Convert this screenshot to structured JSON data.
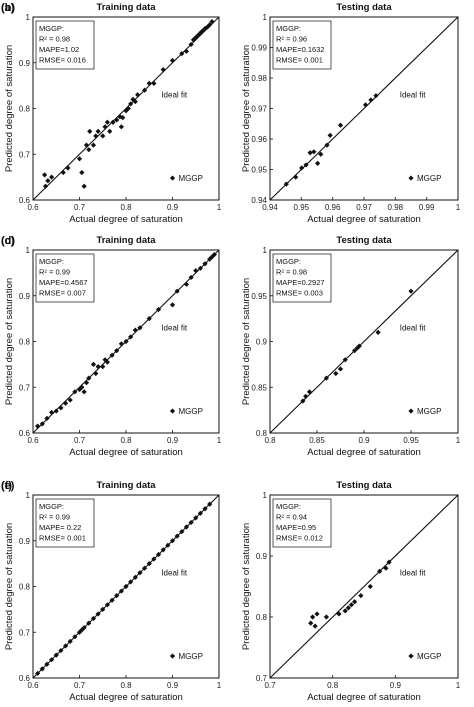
{
  "legend_marker": "diamond",
  "colors": {
    "points": "#111111",
    "fit_line": "#111111",
    "frame": "#111111"
  },
  "chart_data": [
    {
      "panel": "(a)",
      "type": "scatter",
      "title": "Training data",
      "xlabel": "Actual degree of saturation",
      "ylabel": "Predicted  degree of saturation",
      "xlim": [
        0.6,
        1.0
      ],
      "ylim": [
        0.6,
        1.0
      ],
      "xticks": [
        "0.6",
        "0.7",
        "0.8",
        "0.9",
        "1"
      ],
      "yticks": [
        "0.6",
        "0.7",
        "0.8",
        "0.9",
        "1"
      ],
      "fit_label": "Ideal fit",
      "legend": "MGGP",
      "stats": [
        "MGGP:",
        "R² = 0.98",
        "MAPE=1.02",
        "RMSE= 0.016"
      ],
      "ideal_fit": [
        [
          0.6,
          0.6
        ],
        [
          1.0,
          1.0
        ]
      ],
      "points": [
        [
          0.625,
          0.655
        ],
        [
          0.632,
          0.642
        ],
        [
          0.627,
          0.63
        ],
        [
          0.64,
          0.65
        ],
        [
          0.665,
          0.66
        ],
        [
          0.675,
          0.67
        ],
        [
          0.7,
          0.69
        ],
        [
          0.705,
          0.66
        ],
        [
          0.71,
          0.63
        ],
        [
          0.715,
          0.72
        ],
        [
          0.72,
          0.71
        ],
        [
          0.73,
          0.72
        ],
        [
          0.722,
          0.75
        ],
        [
          0.735,
          0.74
        ],
        [
          0.74,
          0.75
        ],
        [
          0.75,
          0.74
        ],
        [
          0.755,
          0.76
        ],
        [
          0.76,
          0.77
        ],
        [
          0.765,
          0.75
        ],
        [
          0.772,
          0.77
        ],
        [
          0.78,
          0.775
        ],
        [
          0.787,
          0.782
        ],
        [
          0.79,
          0.76
        ],
        [
          0.793,
          0.78
        ],
        [
          0.8,
          0.795
        ],
        [
          0.805,
          0.8
        ],
        [
          0.81,
          0.81
        ],
        [
          0.815,
          0.82
        ],
        [
          0.82,
          0.815
        ],
        [
          0.825,
          0.83
        ],
        [
          0.84,
          0.84
        ],
        [
          0.85,
          0.855
        ],
        [
          0.86,
          0.855
        ],
        [
          0.88,
          0.885
        ],
        [
          0.9,
          0.905
        ],
        [
          0.92,
          0.92
        ],
        [
          0.93,
          0.925
        ],
        [
          0.94,
          0.94
        ],
        [
          0.945,
          0.95
        ],
        [
          0.95,
          0.955
        ],
        [
          0.955,
          0.96
        ],
        [
          0.96,
          0.965
        ],
        [
          0.963,
          0.968
        ],
        [
          0.968,
          0.972
        ],
        [
          0.97,
          0.975
        ],
        [
          0.975,
          0.978
        ],
        [
          0.98,
          0.983
        ],
        [
          0.985,
          0.99
        ]
      ]
    },
    {
      "panel": "(b)",
      "type": "scatter",
      "title": "Testing data",
      "xlabel": "Actual degree of saturation",
      "ylabel": "Predicted  degree of saturation",
      "xlim": [
        0.94,
        1.0
      ],
      "ylim": [
        0.94,
        1.0
      ],
      "xticks": [
        "0.94",
        "0.95",
        "0.96",
        "0.97",
        "0.98",
        "0.99",
        "1"
      ],
      "yticks": [
        "0.94",
        "0.95",
        "0.96",
        "0.97",
        "0.98",
        "0.99",
        "1"
      ],
      "fit_label": "Ideal fit",
      "legend": "MGGP",
      "stats": [
        "MGGP:",
        "R² = 0.96",
        "MAPE=0.1632",
        "RMSE= 0.001"
      ],
      "ideal_fit": [
        [
          0.94,
          0.94
        ],
        [
          1.0,
          1.0
        ]
      ],
      "points": [
        [
          0.9452,
          0.9452
        ],
        [
          0.9482,
          0.9475
        ],
        [
          0.9501,
          0.9505
        ],
        [
          0.9515,
          0.9515
        ],
        [
          0.9528,
          0.9555
        ],
        [
          0.954,
          0.9558
        ],
        [
          0.9552,
          0.952
        ],
        [
          0.9562,
          0.955
        ],
        [
          0.9582,
          0.958
        ],
        [
          0.9592,
          0.9612
        ],
        [
          0.9625,
          0.9645
        ],
        [
          0.9705,
          0.9712
        ],
        [
          0.9722,
          0.9728
        ],
        [
          0.9738,
          0.9742
        ]
      ]
    },
    {
      "panel": "(c)",
      "type": "scatter",
      "title": "Training data",
      "xlabel": "Actual degree of saturation",
      "ylabel": "Predicted  degree of saturation",
      "xlim": [
        0.6,
        1.0
      ],
      "ylim": [
        0.6,
        1.0
      ],
      "xticks": [
        "0.6",
        "0.7",
        "0.8",
        "0.9",
        "1"
      ],
      "yticks": [
        "0.6",
        "0.7",
        "0.8",
        "0.9",
        "1"
      ],
      "fit_label": "Ideal fit",
      "legend": "MGGP",
      "stats": [
        "MGGP:",
        "R² = 0.99",
        "MAPE=0.4567",
        "RMSE= 0.007"
      ],
      "ideal_fit": [
        [
          0.6,
          0.6
        ],
        [
          1.0,
          1.0
        ]
      ],
      "points": [
        [
          0.61,
          0.615
        ],
        [
          0.62,
          0.62
        ],
        [
          0.63,
          0.632
        ],
        [
          0.64,
          0.645
        ],
        [
          0.65,
          0.648
        ],
        [
          0.66,
          0.655
        ],
        [
          0.67,
          0.665
        ],
        [
          0.68,
          0.672
        ],
        [
          0.69,
          0.69
        ],
        [
          0.7,
          0.695
        ],
        [
          0.705,
          0.7
        ],
        [
          0.71,
          0.69
        ],
        [
          0.715,
          0.71
        ],
        [
          0.72,
          0.72
        ],
        [
          0.73,
          0.75
        ],
        [
          0.735,
          0.73
        ],
        [
          0.74,
          0.745
        ],
        [
          0.75,
          0.745
        ],
        [
          0.755,
          0.76
        ],
        [
          0.76,
          0.755
        ],
        [
          0.77,
          0.77
        ],
        [
          0.78,
          0.78
        ],
        [
          0.79,
          0.795
        ],
        [
          0.8,
          0.8
        ],
        [
          0.81,
          0.81
        ],
        [
          0.82,
          0.825
        ],
        [
          0.83,
          0.83
        ],
        [
          0.85,
          0.85
        ],
        [
          0.87,
          0.87
        ],
        [
          0.9,
          0.88
        ],
        [
          0.91,
          0.91
        ],
        [
          0.93,
          0.925
        ],
        [
          0.94,
          0.94
        ],
        [
          0.95,
          0.955
        ],
        [
          0.96,
          0.96
        ],
        [
          0.97,
          0.97
        ],
        [
          0.98,
          0.98
        ],
        [
          0.985,
          0.985
        ],
        [
          0.99,
          0.99
        ]
      ]
    },
    {
      "panel": "(d)",
      "type": "scatter",
      "title": "Testing data",
      "xlabel": "Actual degree of saturation",
      "ylabel": "Predicted  degree of saturation",
      "xlim": [
        0.8,
        1.0
      ],
      "ylim": [
        0.8,
        1.0
      ],
      "xticks": [
        "0.8",
        "0.85",
        "0.9",
        "0.95",
        "1"
      ],
      "yticks": [
        "0.8",
        "0.85",
        "0.9",
        "0.95",
        "1"
      ],
      "fit_label": "Ideal fit",
      "legend": "MGGP",
      "stats": [
        "MGGP:",
        "R² = 0.98",
        "MAPE=0.2927",
        "RMSE= 0.003"
      ],
      "ideal_fit": [
        [
          0.8,
          0.8
        ],
        [
          1.0,
          1.0
        ]
      ],
      "points": [
        [
          0.835,
          0.835
        ],
        [
          0.838,
          0.84
        ],
        [
          0.842,
          0.845
        ],
        [
          0.86,
          0.86
        ],
        [
          0.87,
          0.865
        ],
        [
          0.875,
          0.87
        ],
        [
          0.88,
          0.88
        ],
        [
          0.89,
          0.89
        ],
        [
          0.893,
          0.893
        ],
        [
          0.895,
          0.895
        ],
        [
          0.915,
          0.91
        ],
        [
          0.95,
          0.955
        ]
      ]
    },
    {
      "panel": "(e)",
      "type": "scatter",
      "title": "Training data",
      "xlabel": "Actual degree of saturation",
      "ylabel": "Predicted  degree of saturation",
      "xlim": [
        0.6,
        1.0
      ],
      "ylim": [
        0.6,
        1.0
      ],
      "xticks": [
        "0.6",
        "0.7",
        "0.8",
        "0.9",
        "1"
      ],
      "yticks": [
        "0.6",
        "0.7",
        "0.8",
        "0.9",
        "1"
      ],
      "fit_label": "Ideal fit",
      "legend": "MGGP",
      "stats": [
        "MGGP:",
        "R² = 0.99",
        "MAPE= 0.22",
        "RMSE= 0.001"
      ],
      "ideal_fit": [
        [
          0.6,
          0.6
        ],
        [
          1.0,
          1.0
        ]
      ],
      "points": [
        [
          0.61,
          0.61
        ],
        [
          0.62,
          0.62
        ],
        [
          0.63,
          0.63
        ],
        [
          0.64,
          0.64
        ],
        [
          0.65,
          0.65
        ],
        [
          0.66,
          0.66
        ],
        [
          0.67,
          0.67
        ],
        [
          0.68,
          0.68
        ],
        [
          0.69,
          0.69
        ],
        [
          0.7,
          0.7
        ],
        [
          0.705,
          0.705
        ],
        [
          0.71,
          0.71
        ],
        [
          0.72,
          0.72
        ],
        [
          0.73,
          0.73
        ],
        [
          0.74,
          0.74
        ],
        [
          0.75,
          0.75
        ],
        [
          0.76,
          0.76
        ],
        [
          0.77,
          0.77
        ],
        [
          0.78,
          0.78
        ],
        [
          0.79,
          0.79
        ],
        [
          0.8,
          0.8
        ],
        [
          0.81,
          0.81
        ],
        [
          0.82,
          0.82
        ],
        [
          0.83,
          0.83
        ],
        [
          0.84,
          0.84
        ],
        [
          0.85,
          0.85
        ],
        [
          0.86,
          0.86
        ],
        [
          0.87,
          0.87
        ],
        [
          0.88,
          0.88
        ],
        [
          0.89,
          0.89
        ],
        [
          0.9,
          0.9
        ],
        [
          0.91,
          0.91
        ],
        [
          0.92,
          0.92
        ],
        [
          0.93,
          0.93
        ],
        [
          0.94,
          0.94
        ],
        [
          0.95,
          0.95
        ],
        [
          0.96,
          0.96
        ],
        [
          0.97,
          0.97
        ],
        [
          0.98,
          0.98
        ]
      ]
    },
    {
      "panel": "(f)",
      "type": "scatter",
      "title": "Testing data",
      "xlabel": "Actual degree of saturation",
      "ylabel": "Predicted  degree of saturation",
      "xlim": [
        0.7,
        1.0
      ],
      "ylim": [
        0.7,
        1.0
      ],
      "xticks": [
        "0.7",
        "0.8",
        "0.9",
        "1"
      ],
      "yticks": [
        "0.7",
        "0.8",
        "0.9",
        "1"
      ],
      "fit_label": "Ideal fit",
      "legend": "MGGP",
      "stats": [
        "MGGP:",
        "R² = 0.94",
        "MAPE=0.95",
        "RMSE= 0.012"
      ],
      "ideal_fit": [
        [
          0.7,
          0.7
        ],
        [
          1.0,
          1.0
        ]
      ],
      "points": [
        [
          0.765,
          0.79
        ],
        [
          0.768,
          0.8
        ],
        [
          0.772,
          0.785
        ],
        [
          0.775,
          0.805
        ],
        [
          0.79,
          0.8
        ],
        [
          0.81,
          0.805
        ],
        [
          0.82,
          0.81
        ],
        [
          0.825,
          0.815
        ],
        [
          0.83,
          0.82
        ],
        [
          0.835,
          0.825
        ],
        [
          0.845,
          0.835
        ],
        [
          0.86,
          0.85
        ],
        [
          0.875,
          0.875
        ],
        [
          0.885,
          0.88
        ],
        [
          0.89,
          0.89
        ]
      ]
    }
  ]
}
